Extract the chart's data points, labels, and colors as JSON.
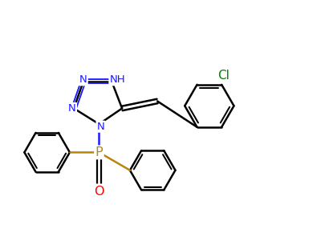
{
  "background_color": "#ffffff",
  "atom_colors": {
    "N": "#1a1aff",
    "P": "#b8860b",
    "O": "#ff0000",
    "Cl": "#008000",
    "C": "#000000",
    "H": "#000000"
  },
  "bond_color": "#000000",
  "bond_width": 1.8,
  "fig_width": 4.0,
  "fig_height": 3.0,
  "dpi": 100
}
